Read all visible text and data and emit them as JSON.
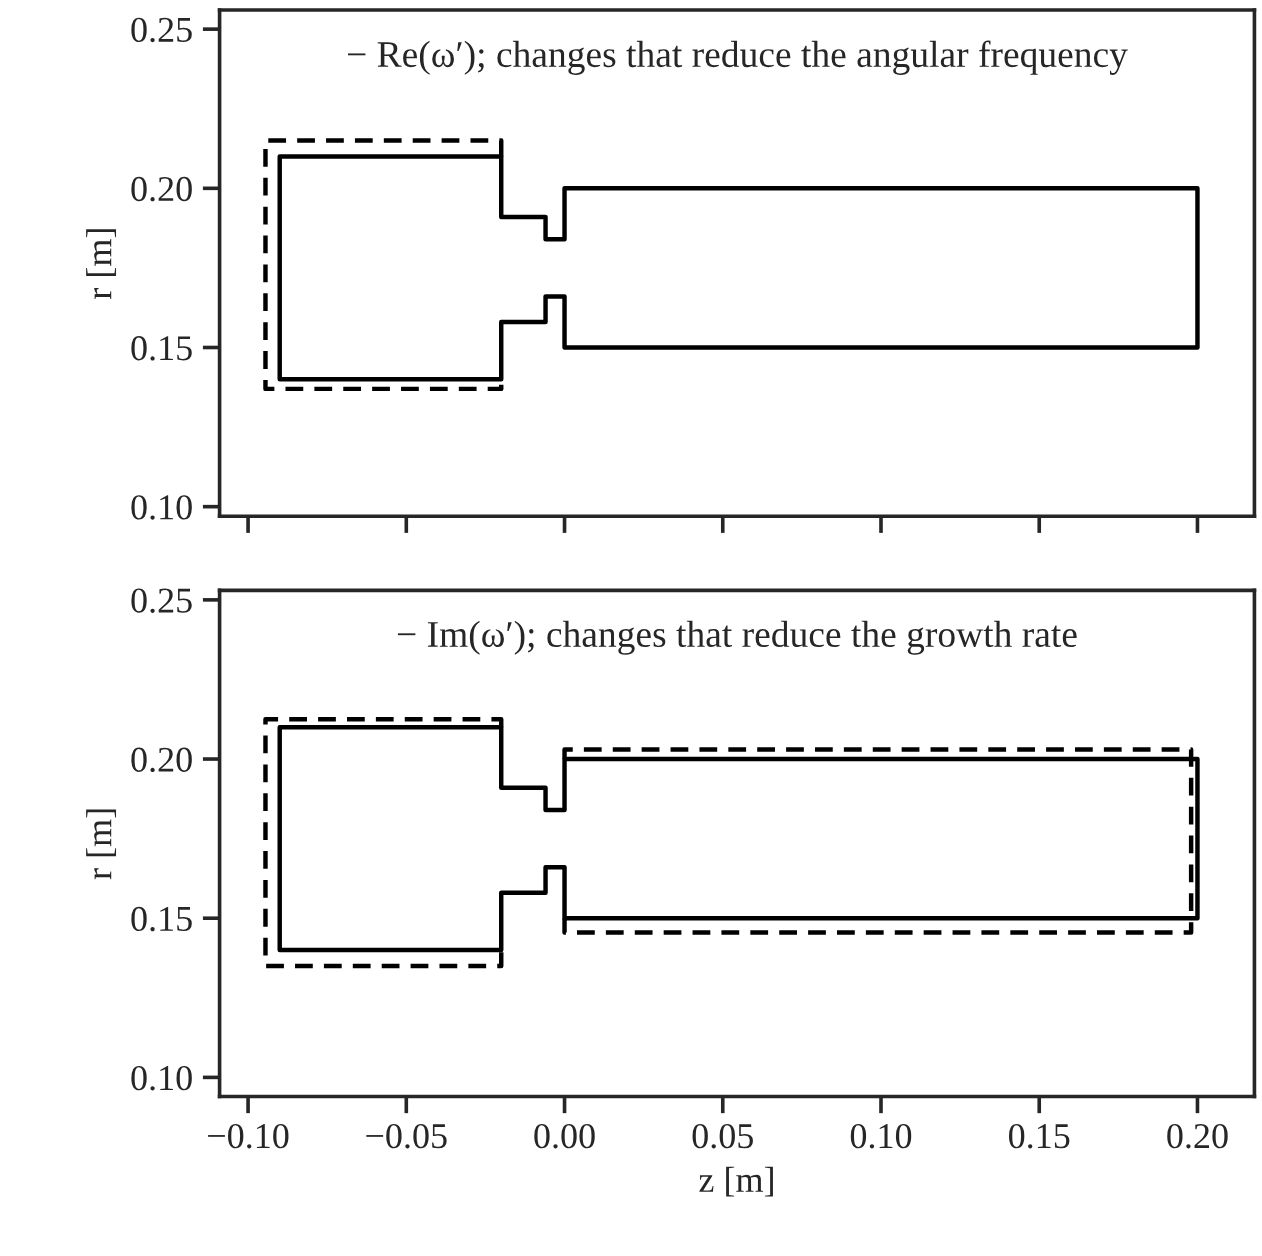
{
  "chart_data": [
    {
      "type": "line",
      "annotations": [
        "− Re(ω′); changes that reduce the angular frequency"
      ],
      "ylabel": "r [m]",
      "xlim": [
        -0.109,
        0.218
      ],
      "xticks": [
        -0.1,
        -0.05,
        0.0,
        0.05,
        0.1,
        0.15,
        0.2
      ],
      "ylim": [
        0.097,
        0.256
      ],
      "yticks": [
        {
          "value": 0.1,
          "label": "0.10"
        },
        {
          "value": 0.15,
          "label": "0.15"
        },
        {
          "value": 0.2,
          "label": "0.20"
        },
        {
          "value": 0.25,
          "label": "0.25"
        }
      ],
      "tick_labels": "y",
      "grid": false,
      "legend": false,
      "series": [
        {
          "color": "#000000",
          "line_style": "solid",
          "x": [
            -0.09,
            -0.09,
            -0.02,
            -0.02,
            -0.006,
            -0.006,
            0.0,
            0.0,
            0.2,
            0.2,
            0.0,
            0.0,
            -0.006,
            -0.006,
            -0.02,
            -0.02,
            -0.09,
            -0.09
          ],
          "values": [
            0.175,
            0.21,
            0.21,
            0.191,
            0.191,
            0.184,
            0.184,
            0.2,
            0.2,
            0.15,
            0.15,
            0.166,
            0.166,
            0.158,
            0.158,
            0.14,
            0.14,
            0.18
          ]
        },
        {
          "color": "#000000",
          "line_style": "dashed",
          "x": [
            -0.02,
            -0.02,
            -0.0945,
            -0.0945,
            -0.02,
            -0.02
          ],
          "values": [
            0.21,
            0.215,
            0.215,
            0.137,
            0.137,
            0.14
          ]
        }
      ]
    },
    {
      "type": "line",
      "annotations": [
        "− Im(ω′); changes that reduce the growth rate"
      ],
      "xlabel": "z [m]",
      "ylabel": "r [m]",
      "xlim": [
        -0.109,
        0.218
      ],
      "xticks": [
        {
          "value": -0.1,
          "label": "−0.10"
        },
        {
          "value": -0.05,
          "label": "−0.05"
        },
        {
          "value": 0.0,
          "label": "0.00"
        },
        {
          "value": 0.05,
          "label": "0.05"
        },
        {
          "value": 0.1,
          "label": "0.10"
        },
        {
          "value": 0.15,
          "label": "0.15"
        },
        {
          "value": 0.2,
          "label": "0.20"
        }
      ],
      "ylim": [
        0.094,
        0.253
      ],
      "yticks": [
        {
          "value": 0.1,
          "label": "0.10"
        },
        {
          "value": 0.15,
          "label": "0.15"
        },
        {
          "value": 0.2,
          "label": "0.20"
        },
        {
          "value": 0.25,
          "label": "0.25"
        }
      ],
      "grid": false,
      "legend": false,
      "series": [
        {
          "color": "#000000",
          "line_style": "solid",
          "x": [
            -0.09,
            -0.09,
            -0.02,
            -0.02,
            -0.006,
            -0.006,
            0.0,
            0.0,
            0.2,
            0.2,
            0.0,
            0.0,
            -0.006,
            -0.006,
            -0.02,
            -0.02,
            -0.09,
            -0.09
          ],
          "values": [
            0.175,
            0.21,
            0.21,
            0.191,
            0.191,
            0.184,
            0.184,
            0.2,
            0.2,
            0.15,
            0.15,
            0.166,
            0.166,
            0.158,
            0.158,
            0.14,
            0.14,
            0.18
          ]
        },
        {
          "color": "#000000",
          "line_style": "dashed",
          "x": [
            -0.02,
            -0.02,
            -0.0945,
            -0.0945,
            -0.02,
            -0.02
          ],
          "values": [
            0.21,
            0.2125,
            0.2125,
            0.135,
            0.135,
            0.14
          ]
        },
        {
          "color": "#000000",
          "line_style": "dashed",
          "x": [
            0.0,
            0.0,
            0.198,
            0.198,
            0.0,
            0.0
          ],
          "values": [
            0.2,
            0.203,
            0.203,
            0.1455,
            0.1455,
            0.15
          ]
        }
      ]
    }
  ]
}
